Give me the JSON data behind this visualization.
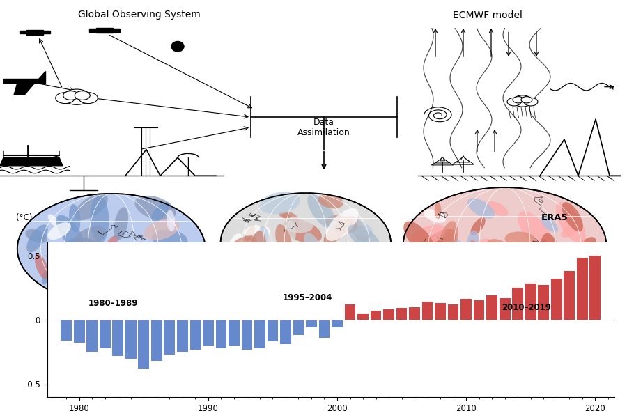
{
  "bar_years": [
    1979,
    1980,
    1981,
    1982,
    1983,
    1984,
    1985,
    1986,
    1987,
    1988,
    1989,
    1990,
    1991,
    1992,
    1993,
    1994,
    1995,
    1996,
    1997,
    1998,
    1999,
    2000,
    2001,
    2002,
    2003,
    2004,
    2005,
    2006,
    2007,
    2008,
    2009,
    2010,
    2011,
    2012,
    2013,
    2014,
    2015,
    2016,
    2017,
    2018,
    2019,
    2020
  ],
  "bar_values": [
    -0.16,
    -0.18,
    -0.25,
    -0.22,
    -0.28,
    -0.3,
    -0.38,
    -0.32,
    -0.27,
    -0.25,
    -0.23,
    -0.2,
    -0.22,
    -0.2,
    -0.23,
    -0.22,
    -0.17,
    -0.19,
    -0.12,
    -0.06,
    -0.14,
    -0.06,
    0.12,
    0.05,
    0.07,
    0.08,
    0.09,
    0.1,
    0.14,
    0.13,
    0.12,
    0.16,
    0.15,
    0.19,
    0.17,
    0.25,
    0.28,
    0.27,
    0.32,
    0.38,
    0.48,
    0.5
  ],
  "color_positive": "#CC4444",
  "color_negative": "#6688CC",
  "xlabel_ticks": [
    1980,
    1990,
    2000,
    2010,
    2020
  ],
  "ylim": [
    -0.6,
    0.6
  ],
  "yticks": [
    -0.5,
    0,
    0.5
  ],
  "label_gos": "Global Observing System",
  "label_ecmwf": "ECMWF model",
  "label_da": "Data\nAssimilation",
  "label_era5": "ERA5",
  "label_unit": "(°C)",
  "label_1980": "1980–1989",
  "label_1995": "1995–2004",
  "label_2010": "2010–2019",
  "bg_color": "#FFFFFF"
}
